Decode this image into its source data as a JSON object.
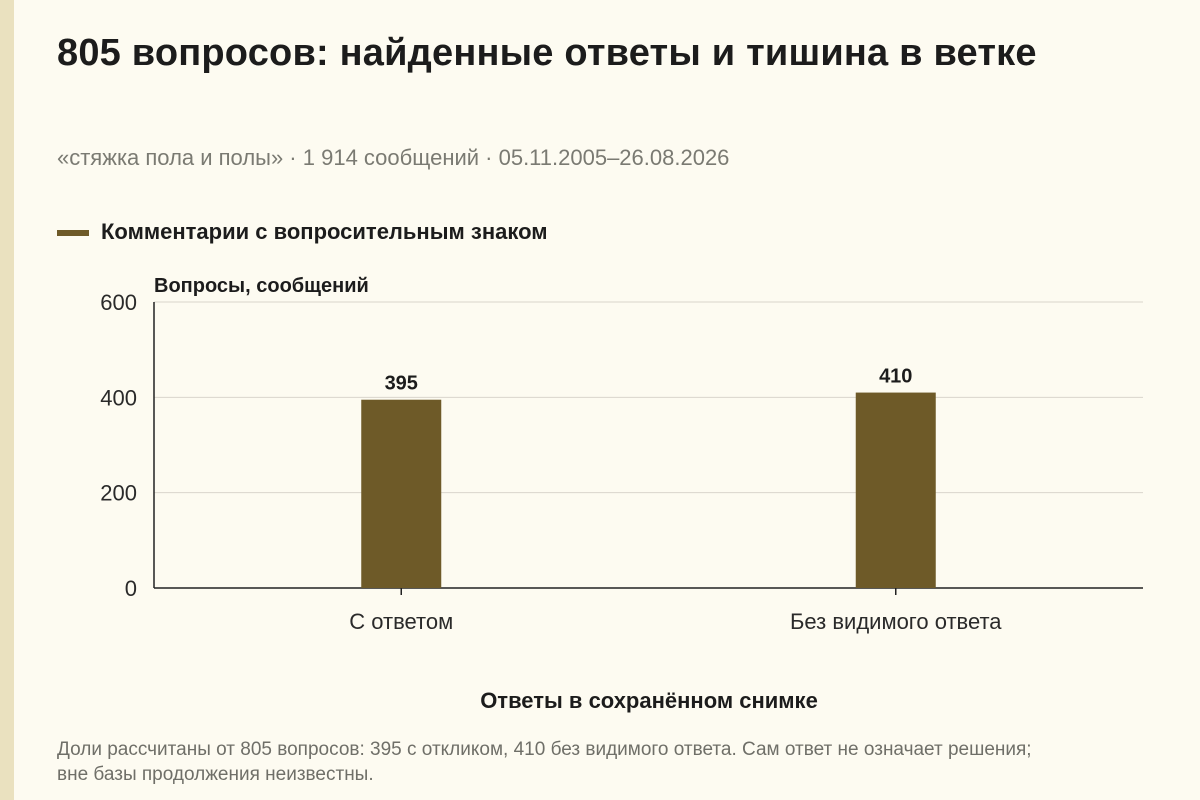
{
  "title": "805 вопросов: найденные ответы и тишина в ветке",
  "subtitle": "«стяжка пола и полы» · 1 914 сообщений · 05.11.2005–26.08.2026",
  "footnote": "Доли рассчитаны от 805 вопросов: 395 с откликом, 410 без видимого ответа. Сам ответ не означает решения; вне базы продолжения неизвестны.",
  "colors": {
    "bar": "#6e5a28",
    "background": "#fdfbf1",
    "grid": "#d9d6cc",
    "axis": "#222222",
    "accent_strip": "#eae1bf"
  },
  "chart_data": {
    "type": "bar",
    "categories": [
      "С ответом",
      "Без видимого ответа"
    ],
    "series": [
      {
        "name": "Комментарии с вопросительным знаком",
        "values": [
          395,
          410
        ]
      }
    ],
    "ylabel": "Вопросы, сообщений",
    "xlabel": "Ответы в сохранённом снимке",
    "ylim": [
      0,
      600
    ],
    "yticks": [
      0,
      200,
      400,
      600
    ],
    "grid": true,
    "legend": "top-left"
  }
}
